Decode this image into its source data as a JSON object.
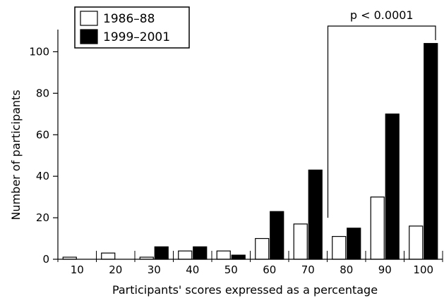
{
  "chart_data": {
    "type": "bar",
    "categories": [
      "10",
      "20",
      "30",
      "40",
      "50",
      "60",
      "70",
      "80",
      "90",
      "100"
    ],
    "series": [
      {
        "name": "1986–88",
        "values": [
          1,
          3,
          1,
          4,
          4,
          10,
          17,
          11,
          30,
          16
        ],
        "color": "#ffffff"
      },
      {
        "name": "1999–2001",
        "values": [
          0,
          0,
          6,
          6,
          2,
          23,
          43,
          15,
          70,
          104
        ],
        "color": "#000000"
      }
    ],
    "xlabel": "Participants' scores expressed as a percentage",
    "ylabel": "Number of participants",
    "ylim": [
      0,
      110
    ],
    "yticks": [
      "0",
      "20",
      "40",
      "60",
      "80",
      "100"
    ],
    "ytick_values": [
      0,
      20,
      40,
      60,
      80,
      100
    ],
    "legend_position": "top-left",
    "grid": false,
    "annotation": {
      "text": "p < 0.0001",
      "from_category": "80",
      "to_category": "100"
    }
  }
}
